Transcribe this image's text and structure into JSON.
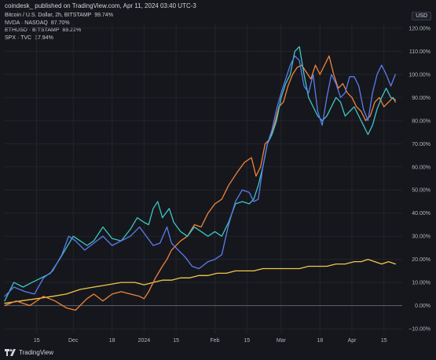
{
  "header": {
    "source_line": "coindesk_ published on TradingView.com, Apr 11, 2024 03:40 UTC-3"
  },
  "currency_button": "USD",
  "footer": {
    "brand": "TradingView"
  },
  "colors": {
    "background": "#16171c",
    "grid": "#23252d",
    "axis_text": "#b2b5be",
    "zero_line": "#5d606b"
  },
  "chart_data": {
    "type": "line",
    "title": "",
    "xlabel": "",
    "ylabel": "",
    "y_unit": "%",
    "ylim": [
      -12,
      122
    ],
    "y_ticks": [
      "120.00%",
      "110.00%",
      "100.00%",
      "90.00%",
      "80.00%",
      "70.00%",
      "60.00%",
      "50.00%",
      "40.00%",
      "30.00%",
      "20.00%",
      "10.00%",
      "0.00%",
      "−10.00%"
    ],
    "y_tick_values": [
      120,
      110,
      100,
      90,
      80,
      70,
      60,
      50,
      40,
      30,
      20,
      10,
      0,
      -10
    ],
    "x_ticks": [
      "15",
      "Dec",
      "18",
      "2024",
      "15",
      "Feb",
      "15",
      "Mar",
      "18",
      "Apr",
      "15"
    ],
    "x_tick_days": [
      15,
      31,
      48,
      62,
      76,
      93,
      107,
      122,
      139,
      153,
      167
    ],
    "x_range_days": [
      1,
      175
    ],
    "x_note": "days elapsed from Nov 1, 2023",
    "grid": true,
    "legend_position": "top-left",
    "series": [
      {
        "name": "Bitcoin / U.S. Dollar, 2h, BITSTAMP",
        "last_label": "99.74%",
        "color": "#5b7cf0",
        "points": [
          [
            1,
            4
          ],
          [
            5,
            8
          ],
          [
            10,
            6
          ],
          [
            14,
            5
          ],
          [
            18,
            12
          ],
          [
            22,
            15
          ],
          [
            26,
            22
          ],
          [
            29,
            30
          ],
          [
            32,
            28
          ],
          [
            36,
            24
          ],
          [
            40,
            27
          ],
          [
            44,
            30
          ],
          [
            48,
            26
          ],
          [
            52,
            28
          ],
          [
            56,
            30
          ],
          [
            60,
            34
          ],
          [
            63,
            30
          ],
          [
            66,
            26
          ],
          [
            69,
            27
          ],
          [
            72,
            34
          ],
          [
            74,
            27
          ],
          [
            77,
            24
          ],
          [
            80,
            21
          ],
          [
            83,
            17
          ],
          [
            86,
            16
          ],
          [
            90,
            19
          ],
          [
            93,
            20
          ],
          [
            96,
            22
          ],
          [
            99,
            35
          ],
          [
            102,
            45
          ],
          [
            105,
            50
          ],
          [
            108,
            49
          ],
          [
            110,
            45
          ],
          [
            112,
            46
          ],
          [
            114,
            60
          ],
          [
            116,
            70
          ],
          [
            118,
            76
          ],
          [
            120,
            85
          ],
          [
            122,
            92
          ],
          [
            124,
            98
          ],
          [
            126,
            104
          ],
          [
            128,
            108
          ],
          [
            130,
            106
          ],
          [
            132,
            95
          ],
          [
            134,
            92
          ],
          [
            136,
            100
          ],
          [
            138,
            84
          ],
          [
            140,
            78
          ],
          [
            142,
            90
          ],
          [
            144,
            100
          ],
          [
            146,
            96
          ],
          [
            148,
            90
          ],
          [
            150,
            92
          ],
          [
            152,
            99
          ],
          [
            154,
            99
          ],
          [
            156,
            95
          ],
          [
            158,
            85
          ],
          [
            160,
            80
          ],
          [
            162,
            92
          ],
          [
            164,
            100
          ],
          [
            166,
            104
          ],
          [
            168,
            100
          ],
          [
            170,
            95
          ],
          [
            172,
            100
          ]
        ]
      },
      {
        "name": "NVDA · NASDAQ",
        "last_label": "87.70%",
        "color": "#f0843c",
        "points": [
          [
            1,
            0
          ],
          [
            6,
            2
          ],
          [
            12,
            0
          ],
          [
            18,
            4
          ],
          [
            23,
            2
          ],
          [
            28,
            -1
          ],
          [
            32,
            -2
          ],
          [
            34,
            0
          ],
          [
            37,
            3
          ],
          [
            40,
            5
          ],
          [
            44,
            2
          ],
          [
            48,
            5
          ],
          [
            52,
            6
          ],
          [
            56,
            5
          ],
          [
            60,
            4
          ],
          [
            62,
            3
          ],
          [
            64,
            6
          ],
          [
            67,
            12
          ],
          [
            70,
            17
          ],
          [
            72,
            20
          ],
          [
            74,
            24
          ],
          [
            78,
            28
          ],
          [
            81,
            30
          ],
          [
            84,
            35
          ],
          [
            87,
            34
          ],
          [
            90,
            40
          ],
          [
            93,
            44
          ],
          [
            96,
            46
          ],
          [
            99,
            52
          ],
          [
            103,
            58
          ],
          [
            106,
            62
          ],
          [
            109,
            64
          ],
          [
            111,
            56
          ],
          [
            113,
            60
          ],
          [
            115,
            70
          ],
          [
            117,
            72
          ],
          [
            119,
            78
          ],
          [
            121,
            86
          ],
          [
            123,
            88
          ],
          [
            125,
            95
          ],
          [
            127,
            100
          ],
          [
            129,
            103
          ],
          [
            131,
            104
          ],
          [
            133,
            101
          ],
          [
            135,
            98
          ],
          [
            137,
            104
          ],
          [
            139,
            100
          ],
          [
            141,
            104
          ],
          [
            143,
            108
          ],
          [
            145,
            100
          ],
          [
            147,
            94
          ],
          [
            149,
            96
          ],
          [
            151,
            92
          ],
          [
            153,
            90
          ],
          [
            155,
            86
          ],
          [
            157,
            84
          ],
          [
            159,
            80
          ],
          [
            161,
            82
          ],
          [
            163,
            88
          ],
          [
            165,
            90
          ],
          [
            167,
            86
          ],
          [
            169,
            88
          ],
          [
            171,
            90
          ],
          [
            172,
            88
          ]
        ]
      },
      {
        "name": "ETHUSD · BITSTAMP",
        "last_label": "89.22%",
        "color": "#3dc6c6",
        "points": [
          [
            1,
            2
          ],
          [
            5,
            10
          ],
          [
            9,
            8
          ],
          [
            13,
            10
          ],
          [
            17,
            12
          ],
          [
            21,
            14
          ],
          [
            25,
            20
          ],
          [
            28,
            25
          ],
          [
            31,
            30
          ],
          [
            34,
            28
          ],
          [
            37,
            26
          ],
          [
            40,
            28
          ],
          [
            44,
            34
          ],
          [
            48,
            29
          ],
          [
            52,
            28
          ],
          [
            56,
            33
          ],
          [
            59,
            38
          ],
          [
            62,
            36
          ],
          [
            64,
            35
          ],
          [
            66,
            42
          ],
          [
            68,
            45
          ],
          [
            70,
            38
          ],
          [
            73,
            42
          ],
          [
            75,
            36
          ],
          [
            78,
            32
          ],
          [
            81,
            30
          ],
          [
            84,
            34
          ],
          [
            87,
            32
          ],
          [
            90,
            30
          ],
          [
            93,
            32
          ],
          [
            96,
            30
          ],
          [
            99,
            36
          ],
          [
            102,
            44
          ],
          [
            105,
            45
          ],
          [
            108,
            44
          ],
          [
            110,
            46
          ],
          [
            112,
            52
          ],
          [
            114,
            60
          ],
          [
            116,
            70
          ],
          [
            118,
            74
          ],
          [
            120,
            80
          ],
          [
            122,
            90
          ],
          [
            124,
            96
          ],
          [
            126,
            100
          ],
          [
            128,
            110
          ],
          [
            130,
            112
          ],
          [
            132,
            100
          ],
          [
            134,
            90
          ],
          [
            136,
            86
          ],
          [
            138,
            82
          ],
          [
            140,
            80
          ],
          [
            142,
            82
          ],
          [
            144,
            86
          ],
          [
            146,
            90
          ],
          [
            148,
            88
          ],
          [
            150,
            82
          ],
          [
            152,
            84
          ],
          [
            154,
            86
          ],
          [
            156,
            82
          ],
          [
            158,
            78
          ],
          [
            160,
            74
          ],
          [
            162,
            78
          ],
          [
            164,
            85
          ],
          [
            166,
            90
          ],
          [
            168,
            94
          ],
          [
            170,
            90
          ],
          [
            172,
            89
          ]
        ]
      },
      {
        "name": "SPX · TVC",
        "last_label": "17.94%",
        "color": "#f3c54a",
        "points": [
          [
            1,
            1
          ],
          [
            8,
            2
          ],
          [
            15,
            3
          ],
          [
            22,
            4
          ],
          [
            28,
            5
          ],
          [
            34,
            7
          ],
          [
            40,
            8
          ],
          [
            46,
            9
          ],
          [
            52,
            10
          ],
          [
            58,
            10
          ],
          [
            62,
            9
          ],
          [
            66,
            10
          ],
          [
            70,
            11
          ],
          [
            74,
            11
          ],
          [
            78,
            12
          ],
          [
            82,
            12
          ],
          [
            86,
            13
          ],
          [
            90,
            13
          ],
          [
            94,
            14
          ],
          [
            98,
            14
          ],
          [
            102,
            15
          ],
          [
            106,
            15
          ],
          [
            110,
            15
          ],
          [
            114,
            16
          ],
          [
            118,
            16
          ],
          [
            122,
            16
          ],
          [
            126,
            16
          ],
          [
            130,
            16
          ],
          [
            134,
            17
          ],
          [
            138,
            17
          ],
          [
            142,
            17
          ],
          [
            146,
            18
          ],
          [
            150,
            18
          ],
          [
            154,
            19
          ],
          [
            157,
            19
          ],
          [
            160,
            20
          ],
          [
            163,
            19
          ],
          [
            166,
            18
          ],
          [
            169,
            19
          ],
          [
            172,
            18
          ]
        ]
      }
    ]
  }
}
